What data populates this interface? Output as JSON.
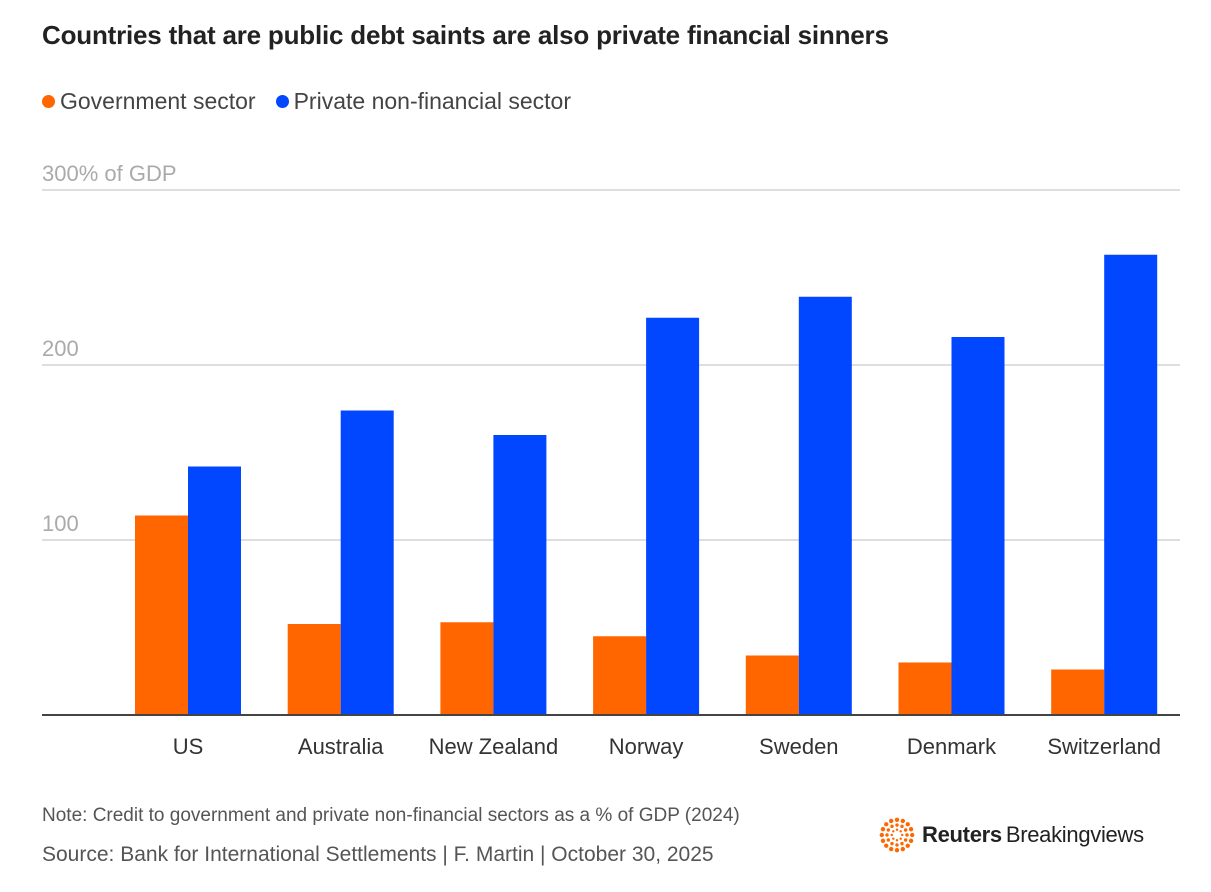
{
  "chart_data": {
    "type": "bar",
    "title": "Countries that are public debt saints are also private financial sinners",
    "ylabel": "300% of GDP",
    "ylim": [
      0,
      300
    ],
    "yticks": [
      {
        "value": 300,
        "label": "300% of GDP"
      },
      {
        "value": 200,
        "label": "200"
      },
      {
        "value": 100,
        "label": "100"
      }
    ],
    "categories": [
      "US",
      "Australia",
      "New Zealand",
      "Norway",
      "Sweden",
      "Denmark",
      "Switzerland"
    ],
    "series": [
      {
        "name": "Government sector",
        "color": "#FF6600",
        "values": [
          114,
          52,
          53,
          45,
          34,
          30,
          26
        ]
      },
      {
        "name": "Private non-financial sector",
        "color": "#0047FF",
        "values": [
          142,
          174,
          160,
          227,
          239,
          216,
          263
        ]
      }
    ],
    "grid": true,
    "legend": "top-left"
  },
  "footer": {
    "note": "Note: Credit to government and private non-financial sectors as a % of GDP (2024)",
    "source": "Source: Bank for International Settlements | F. Martin | October 30, 2025",
    "brand_name": "Reuters",
    "brand_sub": "Breakingviews"
  },
  "colors": {
    "logo": "#FF6600"
  }
}
